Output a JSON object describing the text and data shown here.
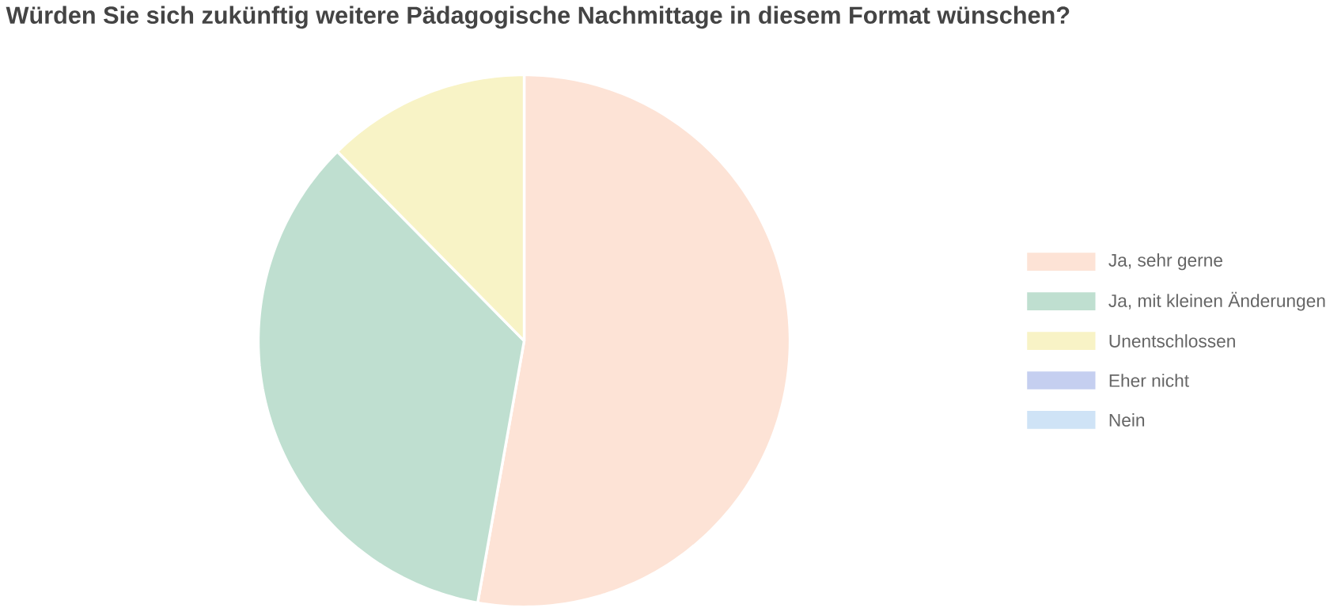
{
  "chart_data": {
    "type": "pie",
    "title": "Würden Sie sich zukünftig weitere Pädagogische Nachmittage in diesem Format wünschen?",
    "categories": [
      "Ja, sehr gerne",
      "Ja, mit kleinen Änderungen",
      "Unentschlossen",
      "Eher nicht",
      "Nein"
    ],
    "values": [
      52.8,
      34.8,
      12.4,
      0,
      0
    ],
    "colors": [
      "#fde3d6",
      "#bfdfd0",
      "#f8f3c6",
      "#c5cff0",
      "#cfe3f6"
    ],
    "legend": "right"
  }
}
